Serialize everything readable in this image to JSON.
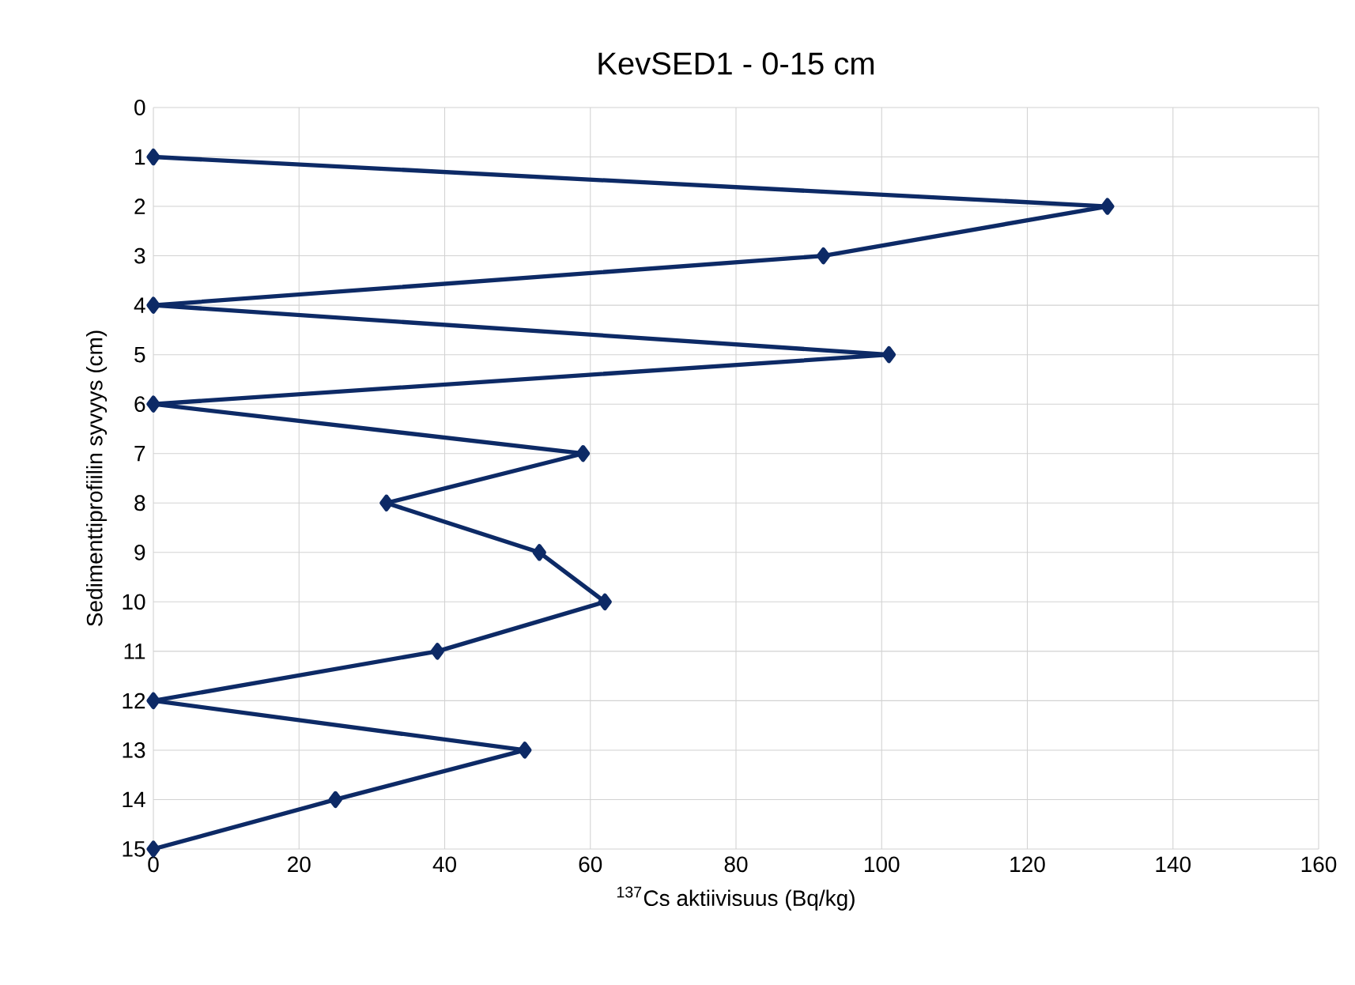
{
  "chart_data": {
    "type": "line",
    "orientation": "horizontal",
    "title": "KevSED1 - 0-15 cm",
    "xlabel": "$^{137}$Cs aktiivisuus (Bq/kg)",
    "ylabel": "Sedimenttiprofiilin syvyys (cm)",
    "x": [
      1,
      2,
      3,
      4,
      5,
      6,
      7,
      8,
      9,
      10,
      11,
      12,
      13,
      14,
      15
    ],
    "values": [
      0,
      131,
      92,
      0,
      101,
      0,
      59,
      32,
      53,
      62,
      39,
      0,
      51,
      25,
      0
    ],
    "color": "#0d2a66",
    "marker": "diamond",
    "line_style": "solid",
    "grid": true,
    "xlim": [
      0,
      160
    ],
    "xticks": [
      0,
      20,
      40,
      60,
      80,
      100,
      120,
      140,
      160
    ],
    "ylim": [
      15,
      0
    ],
    "yticks": [
      0,
      1,
      2,
      3,
      4,
      5,
      6,
      7,
      8,
      9,
      10,
      11,
      12,
      13,
      14,
      15
    ]
  }
}
